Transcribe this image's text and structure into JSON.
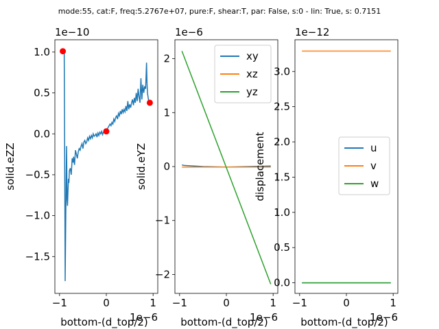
{
  "figure": {
    "title": "mode:55, cat:F, freq:5.2767e+07, pure:F, shear:T, par: False, s:0 - lin: True, s: 0.7151"
  },
  "chart_data": [
    {
      "type": "line",
      "ylabel": "solid.eZZ",
      "xlabel": "bottom-(d_top/2)",
      "x_offset_text": "1e−6",
      "y_offset_text": "1e−10",
      "xlim": [
        -1.1,
        1.1
      ],
      "ylim": [
        -1.95,
        1.15
      ],
      "x_ticks": [
        -1,
        0,
        1
      ],
      "x_tick_labels": [
        "−1",
        "0",
        "1"
      ],
      "y_ticks": [
        -1.5,
        -1.0,
        -0.5,
        0.0,
        0.5,
        1.0
      ],
      "y_tick_labels": [
        "−1.5",
        "−1.0",
        "−0.5",
        "0.0",
        "0.5",
        "1.0"
      ],
      "grid": false,
      "series": [
        {
          "color": "#1f77b4",
          "x": [
            -0.93,
            -0.9,
            -0.89,
            -0.88,
            -0.86,
            -0.85,
            -0.84,
            -0.83,
            -0.82,
            -0.81,
            -0.8,
            -0.79,
            -0.77,
            -0.75,
            -0.73,
            -0.71,
            -0.7,
            -0.68,
            -0.66,
            -0.64,
            -0.62,
            -0.6,
            -0.58,
            -0.56,
            -0.54,
            -0.52,
            -0.5,
            -0.48,
            -0.46,
            -0.44,
            -0.42,
            -0.4,
            -0.38,
            -0.36,
            -0.34,
            -0.32,
            -0.3,
            -0.28,
            -0.26,
            -0.24,
            -0.22,
            -0.2,
            -0.18,
            -0.16,
            -0.14,
            -0.12,
            -0.1,
            -0.08,
            -0.06,
            -0.04,
            -0.02,
            0.0,
            0.02,
            0.04,
            0.06,
            0.08,
            0.1,
            0.12,
            0.14,
            0.16,
            0.18,
            0.2,
            0.22,
            0.24,
            0.26,
            0.28,
            0.3,
            0.32,
            0.34,
            0.36,
            0.38,
            0.4,
            0.42,
            0.44,
            0.46,
            0.48,
            0.5,
            0.52,
            0.54,
            0.56,
            0.58,
            0.6,
            0.62,
            0.64,
            0.66,
            0.68,
            0.7,
            0.72,
            0.74,
            0.76,
            0.78,
            0.8,
            0.82,
            0.84,
            0.85,
            0.86,
            0.87,
            0.88,
            0.9,
            0.93
          ],
          "y": [
            1.01,
            0.98,
            -0.3,
            -1.8,
            -0.6,
            -0.15,
            -0.8,
            -0.88,
            -0.7,
            -0.55,
            -0.6,
            -0.45,
            -0.42,
            -0.5,
            -0.3,
            -0.35,
            -0.28,
            -0.38,
            -0.2,
            -0.25,
            -0.3,
            -0.22,
            -0.18,
            -0.2,
            -0.15,
            -0.12,
            -0.18,
            -0.1,
            -0.08,
            -0.12,
            -0.1,
            -0.05,
            -0.08,
            -0.03,
            -0.06,
            -0.02,
            -0.05,
            0.0,
            -0.03,
            -0.02,
            0.0,
            -0.04,
            0.01,
            -0.02,
            0.02,
            0.0,
            0.03,
            -0.01,
            0.02,
            0.05,
            0.03,
            0.03,
            0.06,
            0.08,
            0.1,
            0.12,
            0.1,
            0.14,
            0.12,
            0.18,
            0.15,
            0.2,
            0.22,
            0.18,
            0.25,
            0.22,
            0.28,
            0.24,
            0.3,
            0.26,
            0.3,
            0.27,
            0.34,
            0.28,
            0.4,
            0.3,
            0.36,
            0.32,
            0.38,
            0.42,
            0.35,
            0.44,
            0.38,
            0.5,
            0.4,
            0.55,
            0.45,
            0.38,
            0.68,
            0.42,
            0.6,
            0.5,
            0.58,
            0.55,
            0.7,
            0.87,
            0.62,
            0.5,
            0.42,
            0.38
          ]
        }
      ],
      "markers": {
        "color": "#ff0000",
        "x": [
          -0.93,
          0.0,
          0.93
        ],
        "y": [
          1.01,
          0.03,
          0.38
        ]
      }
    },
    {
      "type": "line",
      "ylabel": "solid.eYZ",
      "xlabel": "bottom-(d_top/2)",
      "x_offset_text": "1e−6",
      "y_offset_text": "1e−6",
      "xlim": [
        -1.1,
        1.1
      ],
      "ylim": [
        -2.35,
        2.35
      ],
      "x_ticks": [
        -1,
        0,
        1
      ],
      "x_tick_labels": [
        "−1",
        "0",
        "1"
      ],
      "y_ticks": [
        -2,
        -1,
        0,
        1,
        2
      ],
      "y_tick_labels": [
        "−2",
        "−1",
        "0",
        "1",
        "2"
      ],
      "grid": false,
      "legend": "top-right",
      "series": [
        {
          "name": "xy",
          "color": "#1f77b4",
          "x": [
            -0.95,
            -0.9,
            -0.5,
            0.0,
            0.5,
            0.95
          ],
          "y": [
            0.03,
            0.02,
            0.0,
            -0.01,
            0.0,
            0.01
          ]
        },
        {
          "name": "xz",
          "color": "#ff7f0e",
          "x": [
            -0.95,
            0.95
          ],
          "y": [
            -0.01,
            -0.01
          ]
        },
        {
          "name": "yz",
          "color": "#2ca02c",
          "x": [
            -0.95,
            0.95
          ],
          "y": [
            2.14,
            -2.18
          ]
        }
      ]
    },
    {
      "type": "line",
      "ylabel": "displacement",
      "xlabel": "bottom-(d_top/2)",
      "x_offset_text": "1e−6",
      "y_offset_text": "1e−12",
      "xlim": [
        -1.1,
        1.1
      ],
      "ylim": [
        -0.15,
        3.45
      ],
      "x_ticks": [
        -1,
        0,
        1
      ],
      "x_tick_labels": [
        "−1",
        "0",
        "1"
      ],
      "y_ticks": [
        0.0,
        0.5,
        1.0,
        1.5,
        2.0,
        2.5,
        3.0
      ],
      "y_tick_labels": [
        "0.0",
        "0.5",
        "1.0",
        "1.5",
        "2.0",
        "2.5",
        "3.0"
      ],
      "grid": false,
      "legend": "center-right",
      "series": [
        {
          "name": "u",
          "color": "#1f77b4",
          "x": [
            -0.95,
            0.95
          ],
          "y": [
            0.0,
            0.0
          ]
        },
        {
          "name": "v",
          "color": "#ff7f0e",
          "x": [
            -0.95,
            0.95
          ],
          "y": [
            3.29,
            3.29
          ]
        },
        {
          "name": "w",
          "color": "#2ca02c",
          "x": [
            -0.95,
            0.95
          ],
          "y": [
            0.0,
            0.0
          ]
        }
      ]
    }
  ]
}
